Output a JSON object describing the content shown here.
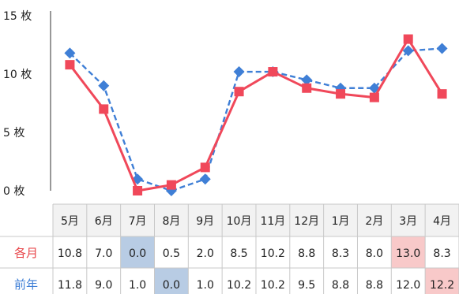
{
  "chart_data": {
    "type": "line",
    "title": "",
    "xlabel": "",
    "ylabel": "",
    "ylim": [
      0,
      15
    ],
    "yticks": [
      {
        "value": 0,
        "label": "0 枚"
      },
      {
        "value": 5,
        "label": "5 枚"
      },
      {
        "value": 10,
        "label": "10 枚"
      },
      {
        "value": 15,
        "label": "15 枚"
      }
    ],
    "categories": [
      "5月",
      "6月",
      "7月",
      "8月",
      "9月",
      "10月",
      "11月",
      "12月",
      "1月",
      "2月",
      "3月",
      "4月"
    ],
    "series": [
      {
        "name": "各月",
        "color": "#f0485a",
        "marker": "square",
        "line_style": "solid",
        "values": [
          10.8,
          7.0,
          0.0,
          0.5,
          2.0,
          8.5,
          10.2,
          8.8,
          8.3,
          8.0,
          13.0,
          8.3
        ],
        "labels": [
          "10.8",
          "7.0",
          "0.0",
          "0.5",
          "2.0",
          "8.5",
          "10.2",
          "8.8",
          "8.3",
          "8.0",
          "13.0",
          "8.3"
        ]
      },
      {
        "name": "前年",
        "color": "#3f7fd6",
        "marker": "diamond",
        "line_style": "dashed",
        "values": [
          11.8,
          9.0,
          1.0,
          0.0,
          1.0,
          10.2,
          10.2,
          9.5,
          8.8,
          8.8,
          12.0,
          12.2
        ],
        "labels": [
          "11.8",
          "9.0",
          "1.0",
          "0.0",
          "1.0",
          "10.2",
          "10.2",
          "9.5",
          "8.8",
          "8.8",
          "12.0",
          "12.2"
        ]
      }
    ],
    "grid": false
  },
  "table": {
    "highlights": [
      {
        "row": 0,
        "col": 2,
        "color": "#b8cce4"
      },
      {
        "row": 0,
        "col": 10,
        "color": "#f8c9c9"
      },
      {
        "row": 1,
        "col": 3,
        "color": "#b8cce4"
      },
      {
        "row": 1,
        "col": 11,
        "color": "#f8c9c9"
      }
    ],
    "header_bg": "#f2f2f2"
  }
}
